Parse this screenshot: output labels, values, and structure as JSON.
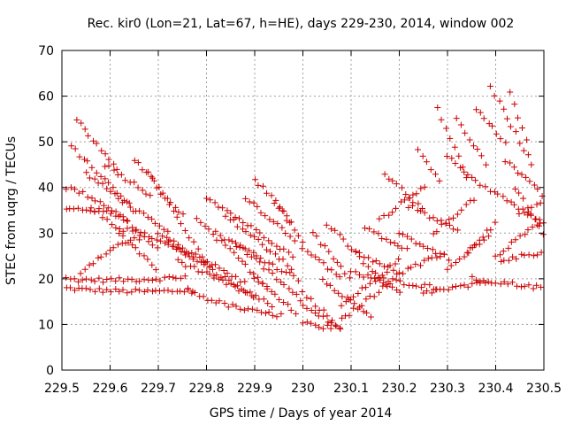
{
  "chart_data": {
    "type": "scatter",
    "title": "Rec. kir0 (Lon=21, Lat=67, h=HE), days 229-230, 2014, window 002",
    "xlabel": "GPS time / Days of year 2014",
    "ylabel": "STEC from uqrg / TECUs",
    "xlim": [
      229.5,
      230.5
    ],
    "ylim": [
      0,
      70
    ],
    "xticks": [
      "229.5",
      "229.6",
      "229.7",
      "229.8",
      "229.9",
      "230",
      "230.1",
      "230.2",
      "230.3",
      "230.4",
      "230.5"
    ],
    "yticks": [
      "0",
      "10",
      "20",
      "30",
      "40",
      "50",
      "60",
      "70"
    ],
    "grid": true,
    "marker": "+",
    "color": "#cc0000",
    "tracks": [
      {
        "start": 229.5,
        "end": 229.78,
        "y0": 18.0,
        "y1": 17.5,
        "curve": -0.5
      },
      {
        "start": 229.5,
        "end": 229.76,
        "y0": 20.0,
        "y1": 20.5,
        "curve": -0.5
      },
      {
        "start": 229.5,
        "end": 229.64,
        "y0": 35.0,
        "y1": 33.0,
        "curve": 1.0
      },
      {
        "start": 229.51,
        "end": 229.7,
        "y0": 40.0,
        "y1": 26.0,
        "curve": 2.0
      },
      {
        "start": 229.52,
        "end": 229.65,
        "y0": 49.0,
        "y1": 35.0,
        "curve": 0.0
      },
      {
        "start": 229.53,
        "end": 229.62,
        "y0": 55.0,
        "y1": 43.0,
        "curve": 0.0
      },
      {
        "start": 229.54,
        "end": 229.66,
        "y0": 21.5,
        "y1": 29.0,
        "curve": 1.0
      },
      {
        "start": 229.55,
        "end": 229.72,
        "y0": 43.0,
        "y1": 30.0,
        "curve": 0.0
      },
      {
        "start": 229.56,
        "end": 229.7,
        "y0": 36.0,
        "y1": 22.0,
        "curve": 0.0
      },
      {
        "start": 229.59,
        "end": 229.69,
        "y0": 45.0,
        "y1": 38.0,
        "curve": 0.0
      },
      {
        "start": 229.62,
        "end": 229.78,
        "y0": 31.0,
        "y1": 24.0,
        "curve": 1.0
      },
      {
        "start": 229.65,
        "end": 229.76,
        "y0": 46.0,
        "y1": 33.0,
        "curve": 0.0
      },
      {
        "start": 229.68,
        "end": 229.82,
        "y0": 43.0,
        "y1": 20.0,
        "curve": 0.0
      },
      {
        "start": 229.7,
        "end": 229.88,
        "y0": 30.0,
        "y1": 19.0,
        "curve": 0.0
      },
      {
        "start": 229.72,
        "end": 229.9,
        "y0": 28.0,
        "y1": 16.0,
        "curve": 0.0
      },
      {
        "start": 229.74,
        "end": 229.94,
        "y0": 24.0,
        "y1": 14.0,
        "curve": 0.0
      },
      {
        "start": 229.76,
        "end": 229.96,
        "y0": 17.5,
        "y1": 12.0,
        "curve": -1.0
      },
      {
        "start": 229.78,
        "end": 229.93,
        "y0": 33.0,
        "y1": 18.0,
        "curve": 0.0
      },
      {
        "start": 229.8,
        "end": 229.98,
        "y0": 38.0,
        "y1": 25.0,
        "curve": 0.0
      },
      {
        "start": 229.82,
        "end": 229.99,
        "y0": 30.0,
        "y1": 20.0,
        "curve": 0.0
      },
      {
        "start": 229.84,
        "end": 229.98,
        "y0": 34.0,
        "y1": 22.0,
        "curve": 0.0
      },
      {
        "start": 229.86,
        "end": 230.0,
        "y0": 28.0,
        "y1": 15.0,
        "curve": 0.0
      },
      {
        "start": 229.88,
        "end": 229.99,
        "y0": 38.0,
        "y1": 28.0,
        "curve": 0.0
      },
      {
        "start": 229.9,
        "end": 229.98,
        "y0": 42.0,
        "y1": 32.0,
        "curve": 0.0
      },
      {
        "start": 229.9,
        "end": 229.99,
        "y0": 20.0,
        "y1": 12.0,
        "curve": 0.0
      },
      {
        "start": 229.94,
        "end": 230.0,
        "y0": 37.0,
        "y1": 28.0,
        "curve": 0.0
      },
      {
        "start": 230.0,
        "end": 230.08,
        "y0": 27.0,
        "y1": 20.0,
        "curve": 0.0
      },
      {
        "start": 230.0,
        "end": 230.06,
        "y0": 17.0,
        "y1": 11.0,
        "curve": 0.0
      },
      {
        "start": 230.0,
        "end": 230.08,
        "y0": 14.0,
        "y1": 9.0,
        "curve": 0.0
      },
      {
        "start": 230.0,
        "end": 230.08,
        "y0": 10.5,
        "y1": 9.5,
        "curve": -0.5
      },
      {
        "start": 230.02,
        "end": 230.1,
        "y0": 30.0,
        "y1": 20.0,
        "curve": 0.0
      },
      {
        "start": 230.04,
        "end": 230.15,
        "y0": 20.0,
        "y1": 11.0,
        "curve": 0.0
      },
      {
        "start": 230.05,
        "end": 230.16,
        "y0": 32.0,
        "y1": 20.0,
        "curve": 0.0
      },
      {
        "start": 230.08,
        "end": 230.2,
        "y0": 14.0,
        "y1": 24.0,
        "curve": 0.0
      },
      {
        "start": 230.08,
        "end": 230.19,
        "y0": 11.0,
        "y1": 20.0,
        "curve": 0.0
      },
      {
        "start": 230.1,
        "end": 230.21,
        "y0": 22.0,
        "y1": 17.0,
        "curve": 0.0
      },
      {
        "start": 230.11,
        "end": 230.2,
        "y0": 26.0,
        "y1": 21.0,
        "curve": 0.0
      },
      {
        "start": 230.13,
        "end": 230.22,
        "y0": 31.0,
        "y1": 26.0,
        "curve": 0.0
      },
      {
        "start": 230.16,
        "end": 230.28,
        "y0": 20.0,
        "y1": 18.0,
        "curve": 0.0
      },
      {
        "start": 230.16,
        "end": 230.26,
        "y0": 33.0,
        "y1": 41.0,
        "curve": 0.0
      },
      {
        "start": 230.17,
        "end": 230.25,
        "y0": 43.0,
        "y1": 35.0,
        "curve": 0.0
      },
      {
        "start": 230.2,
        "end": 230.3,
        "y0": 21.0,
        "y1": 26.0,
        "curve": 0.0
      },
      {
        "start": 230.2,
        "end": 230.31,
        "y0": 30.0,
        "y1": 24.0,
        "curve": 0.0
      },
      {
        "start": 230.22,
        "end": 230.33,
        "y0": 36.0,
        "y1": 30.0,
        "curve": 0.0
      },
      {
        "start": 230.24,
        "end": 230.29,
        "y0": 48.0,
        "y1": 40.0,
        "curve": 0.0
      },
      {
        "start": 230.25,
        "end": 230.38,
        "y0": 17.0,
        "y1": 19.0,
        "curve": 0.0
      },
      {
        "start": 230.27,
        "end": 230.36,
        "y0": 30.0,
        "y1": 38.0,
        "curve": 0.0
      },
      {
        "start": 230.28,
        "end": 230.34,
        "y0": 57.0,
        "y1": 42.0,
        "curve": 0.0
      },
      {
        "start": 230.3,
        "end": 230.39,
        "y0": 22.0,
        "y1": 30.0,
        "curve": 0.0
      },
      {
        "start": 230.3,
        "end": 230.37,
        "y0": 47.0,
        "y1": 40.0,
        "curve": 0.0
      },
      {
        "start": 230.32,
        "end": 230.38,
        "y0": 55.0,
        "y1": 45.0,
        "curve": 0.0
      },
      {
        "start": 230.34,
        "end": 230.4,
        "y0": 26.0,
        "y1": 32.0,
        "curve": 0.0
      },
      {
        "start": 230.35,
        "end": 230.5,
        "y0": 20.0,
        "y1": 18.0,
        "curve": 0.0
      },
      {
        "start": 230.36,
        "end": 230.42,
        "y0": 57.0,
        "y1": 50.0,
        "curve": 0.0
      },
      {
        "start": 230.38,
        "end": 230.5,
        "y0": 40.0,
        "y1": 32.0,
        "curve": 0.0
      },
      {
        "start": 230.39,
        "end": 230.48,
        "y0": 62.0,
        "y1": 44.0,
        "curve": 0.0
      },
      {
        "start": 230.4,
        "end": 230.5,
        "y0": 25.0,
        "y1": 33.0,
        "curve": 0.0
      },
      {
        "start": 230.41,
        "end": 230.5,
        "y0": 24.0,
        "y1": 26.0,
        "curve": 0.0
      },
      {
        "start": 230.42,
        "end": 230.5,
        "y0": 46.0,
        "y1": 38.0,
        "curve": 0.0
      },
      {
        "start": 230.43,
        "end": 230.47,
        "y0": 61.0,
        "y1": 48.0,
        "curve": 0.0
      },
      {
        "start": 230.44,
        "end": 230.5,
        "y0": 40.0,
        "y1": 30.0,
        "curve": 0.0
      },
      {
        "start": 230.45,
        "end": 230.5,
        "y0": 34.0,
        "y1": 37.0,
        "curve": 0.0
      }
    ]
  }
}
